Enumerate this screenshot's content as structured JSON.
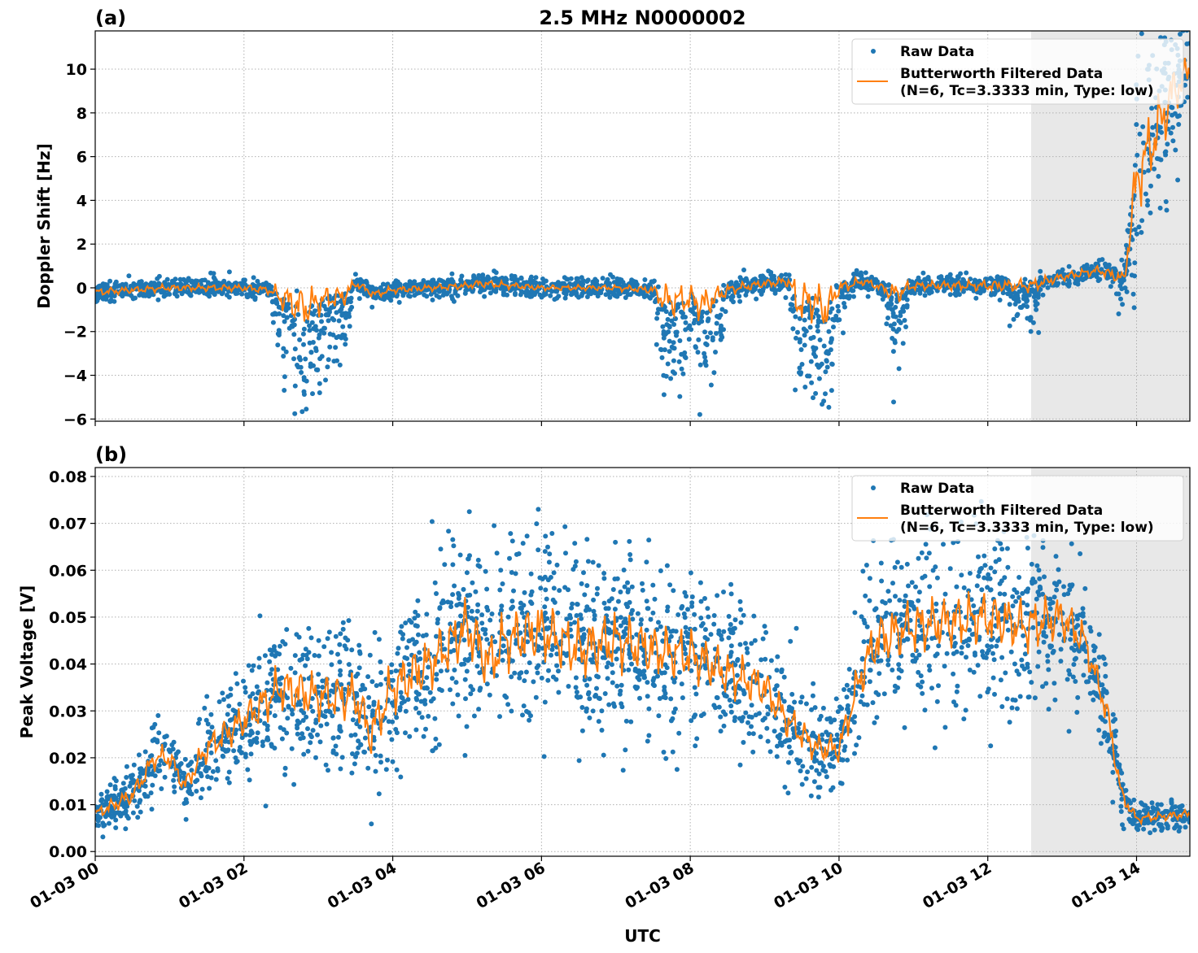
{
  "chart_data": [
    {
      "type": "scatter",
      "panel_label": "(a)",
      "title": "2.5 MHz N0000002",
      "xlabel": "",
      "ylabel": "Doppler Shift [Hz]",
      "ylim": [
        -6.1,
        11.75
      ],
      "yticks": [
        -6,
        -4,
        -2,
        0,
        2,
        4,
        6,
        8,
        10
      ],
      "ytick_labels": [
        "−6",
        "−4",
        "−2",
        "0",
        "2",
        "4",
        "6",
        "8",
        "10"
      ],
      "xlim": [
        "01-03 00:00",
        "01-03 14:43"
      ],
      "xticks": [
        "01-03 00",
        "01-03 02",
        "01-03 04",
        "01-03 06",
        "01-03 08",
        "01-03 10",
        "01-03 12",
        "01-03 14"
      ],
      "grid": true,
      "shaded_region": {
        "start": "01-03 12:35",
        "end": "01-03 14:43",
        "color": "#e8e8e8"
      },
      "legend": {
        "placement": "top-right",
        "entries": [
          "Raw Data",
          "Butterworth Filtered Data",
          "(N=6, Tc=3.3333 min, Type: low)"
        ]
      },
      "series": [
        {
          "name": "Raw Data",
          "kind": "scatter",
          "color": "#1f77b4"
        },
        {
          "name": "Butterworth Filtered Data (N=6, Tc=3.3333 min, Type: low)",
          "kind": "line",
          "color": "#ff7f0e"
        }
      ],
      "filtered_profile": {
        "time": [
          "00:00",
          "00:30",
          "01:00",
          "02:00",
          "02:20",
          "02:35",
          "02:50",
          "03:05",
          "03:20",
          "03:30",
          "03:45",
          "04:00",
          "05:00",
          "05:10",
          "06:00",
          "07:00",
          "07:30",
          "07:40",
          "08:00",
          "08:10",
          "08:30",
          "09:00",
          "09:20",
          "09:25",
          "09:40",
          "09:50",
          "10:00",
          "10:20",
          "10:35",
          "10:45",
          "11:00",
          "12:00",
          "12:35",
          "13:00",
          "13:30",
          "13:50",
          "14:00",
          "14:15",
          "14:30",
          "14:43"
        ],
        "value": [
          -0.2,
          -0.1,
          0,
          0,
          -0.1,
          -0.6,
          -0.9,
          -0.5,
          -0.4,
          0.2,
          -0.3,
          -0.1,
          0.1,
          0.2,
          0,
          0,
          -0.1,
          -0.6,
          -0.5,
          -0.8,
          -0.1,
          0.2,
          0.3,
          -0.6,
          -0.6,
          -1.0,
          0,
          0.3,
          0,
          -0.3,
          0.1,
          0.1,
          0.1,
          0.5,
          0.8,
          0.4,
          5,
          7,
          9,
          10
        ],
        "raw_spread": [
          0.3,
          0.25,
          0.25,
          0.25,
          0.3,
          1.2,
          1.5,
          0.9,
          0.8,
          0.3,
          0.3,
          0.25,
          0.25,
          0.3,
          0.2,
          0.2,
          0.3,
          1.3,
          1.0,
          1.3,
          0.4,
          0.3,
          0.4,
          1.5,
          1.5,
          1.6,
          0.5,
          0.3,
          0.3,
          0.9,
          0.3,
          0.4,
          0.5,
          0.3,
          0.35,
          0.5,
          2.5,
          2.5,
          2.0,
          1.0
        ]
      }
    },
    {
      "type": "scatter",
      "panel_label": "(b)",
      "xlabel": "UTC",
      "ylabel": "Peak Voltage [V]",
      "ylim": [
        -0.001,
        0.0819
      ],
      "yticks": [
        0,
        0.01,
        0.02,
        0.03,
        0.04,
        0.05,
        0.06,
        0.07,
        0.08
      ],
      "ytick_labels": [
        "0.00",
        "0.01",
        "0.02",
        "0.03",
        "0.04",
        "0.05",
        "0.06",
        "0.07",
        "0.08"
      ],
      "xlim": [
        "01-03 00:00",
        "01-03 14:43"
      ],
      "xticks": [
        "01-03 00",
        "01-03 02",
        "01-03 04",
        "01-03 06",
        "01-03 08",
        "01-03 10",
        "01-03 12",
        "01-03 14"
      ],
      "grid": true,
      "shaded_region": {
        "start": "01-03 12:35",
        "end": "01-03 14:43",
        "color": "#e8e8e8"
      },
      "legend": {
        "placement": "top-right",
        "entries": [
          "Raw Data",
          "Butterworth Filtered Data",
          "(N=6, Tc=3.3333 min, Type: low)"
        ]
      },
      "series": [
        {
          "name": "Raw Data",
          "kind": "scatter",
          "color": "#1f77b4"
        },
        {
          "name": "Butterworth Filtered Data (N=6, Tc=3.3333 min, Type: low)",
          "kind": "line",
          "color": "#ff7f0e"
        }
      ],
      "filtered_profile": {
        "time": [
          "00:00",
          "00:30",
          "00:48",
          "01:00",
          "01:12",
          "01:30",
          "02:00",
          "02:30",
          "03:00",
          "03:30",
          "03:42",
          "04:00",
          "04:30",
          "05:00",
          "05:18",
          "05:30",
          "06:00",
          "06:30",
          "07:00",
          "07:30",
          "08:00",
          "08:30",
          "09:00",
          "09:18",
          "09:42",
          "10:00",
          "10:18",
          "10:30",
          "11:00",
          "12:00",
          "12:30",
          "13:00",
          "13:18",
          "13:36",
          "13:48",
          "14:00",
          "14:43"
        ],
        "value": [
          0.008,
          0.012,
          0.02,
          0.02,
          0.014,
          0.022,
          0.028,
          0.035,
          0.033,
          0.033,
          0.025,
          0.035,
          0.04,
          0.048,
          0.04,
          0.045,
          0.047,
          0.043,
          0.045,
          0.043,
          0.042,
          0.038,
          0.035,
          0.028,
          0.022,
          0.022,
          0.038,
          0.045,
          0.048,
          0.05,
          0.048,
          0.05,
          0.045,
          0.03,
          0.012,
          0.007,
          0.008
        ],
        "raw_spread": [
          0.002,
          0.003,
          0.004,
          0.004,
          0.003,
          0.005,
          0.006,
          0.008,
          0.008,
          0.008,
          0.008,
          0.009,
          0.009,
          0.01,
          0.01,
          0.01,
          0.01,
          0.01,
          0.01,
          0.009,
          0.009,
          0.008,
          0.007,
          0.006,
          0.005,
          0.005,
          0.008,
          0.009,
          0.009,
          0.009,
          0.009,
          0.008,
          0.006,
          0.005,
          0.003,
          0.0015,
          0.0015
        ]
      }
    }
  ]
}
